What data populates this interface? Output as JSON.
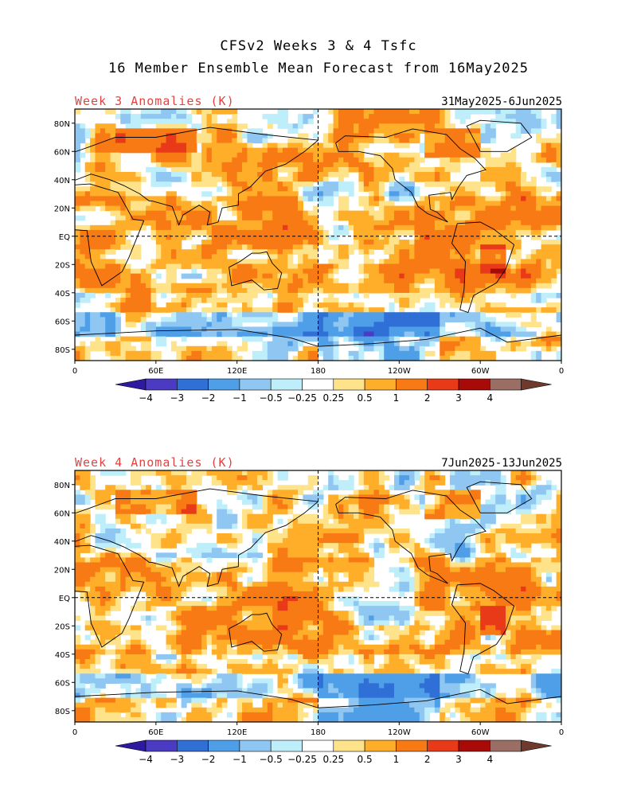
{
  "title_line1": "CFSv2 Weeks 3 & 4 Tsfc",
  "title_line2": "16 Member Ensemble Mean Forecast from 16May2025",
  "panels": [
    {
      "label": "Week 3 Anomalies (K)",
      "date_range": "31May2025-6Jun2025",
      "lat_ticks": [
        "80N",
        "60N",
        "40N",
        "20N",
        "EQ",
        "20S",
        "40S",
        "60S",
        "80S"
      ],
      "lon_ticks": [
        "0",
        "60E",
        "120E",
        "180",
        "120W",
        "60W",
        "0"
      ]
    },
    {
      "label": "Week 4 Anomalies (K)",
      "date_range": "7Jun2025-13Jun2025",
      "lat_ticks": [
        "80N",
        "60N",
        "40N",
        "20N",
        "EQ",
        "20S",
        "40S",
        "60S",
        "80S"
      ],
      "lon_ticks": [
        "0",
        "60E",
        "120E",
        "180",
        "120W",
        "60W",
        "0"
      ]
    }
  ],
  "colorbar": {
    "labels": [
      "-4",
      "-3",
      "-2",
      "-1",
      "-0.5",
      "-0.25",
      "0.25",
      "0.5",
      "1",
      "2",
      "3",
      "4"
    ],
    "colors": [
      "#2e1aa0",
      "#4a3bc2",
      "#2f6fd6",
      "#4f9fe8",
      "#8fc6f2",
      "#bdeefa",
      "#ffffff",
      "#ffe38a",
      "#ffae2a",
      "#f87a14",
      "#e83a18",
      "#a80a08",
      "#9a6e64",
      "#6e3a2e"
    ]
  },
  "chart_data": {
    "type": "heatmap",
    "variable": "Tsfc",
    "units": "K",
    "legend_levels": [
      -4,
      -3,
      -2,
      -1,
      -0.5,
      -0.25,
      0.25,
      0.5,
      1,
      2,
      3,
      4
    ]
  }
}
